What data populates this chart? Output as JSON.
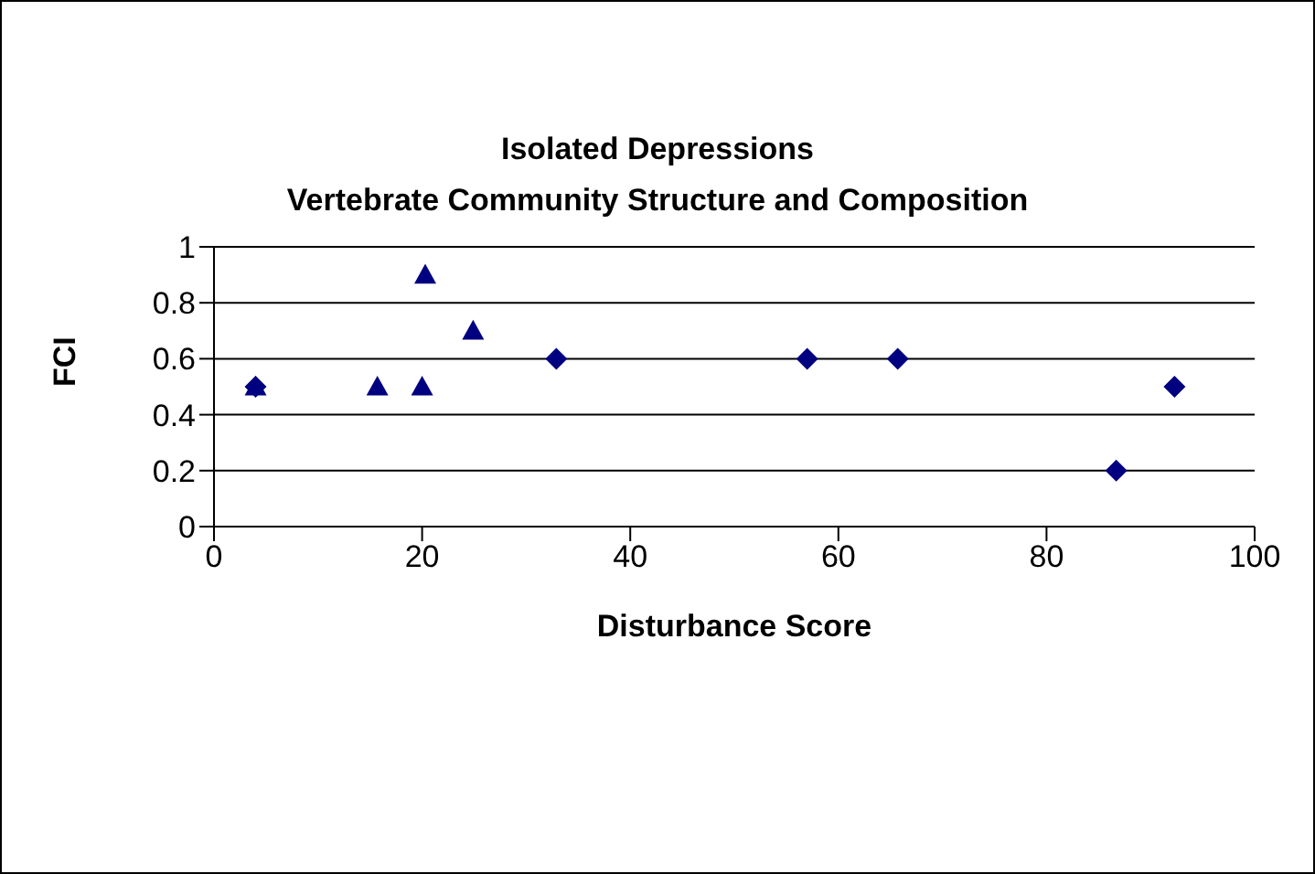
{
  "chart_data": {
    "type": "scatter",
    "title": "Isolated Depressions\nVertebrate Community Structure and Composition",
    "xlabel": "Disturbance Score",
    "ylabel": "FCI",
    "xlim": [
      0,
      100
    ],
    "xticks": [
      0,
      20,
      40,
      60,
      80,
      100
    ],
    "ylim": [
      0,
      1
    ],
    "yticks": [
      0,
      0.2,
      0.4,
      0.6,
      0.8,
      1
    ],
    "grid": "y",
    "legend": false,
    "series": [
      {
        "color": "#000080",
        "marker": "diamond",
        "x": [
          4,
          32.9,
          57,
          65.7,
          86.7,
          92.3
        ],
        "values": [
          0.5,
          0.6,
          0.6,
          0.6,
          0.2,
          0.5
        ]
      },
      {
        "color": "#000080",
        "marker": "triangle",
        "x": [
          4,
          15.7,
          20,
          20.3,
          24.9
        ],
        "values": [
          0.5,
          0.5,
          0.5,
          0.9,
          0.7
        ]
      }
    ]
  }
}
